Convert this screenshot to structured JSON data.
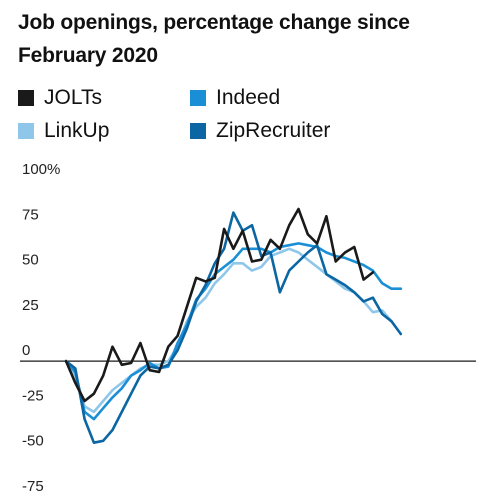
{
  "chart_data": {
    "type": "line",
    "title": "Job openings, percentage change since February 2020",
    "xlabel": "",
    "ylabel": "",
    "x": [
      0,
      1,
      2,
      3,
      4,
      5,
      6,
      7,
      8,
      9,
      10,
      11,
      12,
      13,
      14,
      15,
      16,
      17,
      18,
      19,
      20,
      21,
      22,
      23,
      24,
      25,
      26,
      27,
      28,
      29,
      30,
      31,
      32,
      33,
      34,
      35,
      36,
      37,
      38,
      39,
      40,
      41,
      42,
      43,
      44,
      45
    ],
    "ylim": [
      -75,
      100
    ],
    "y_ticks": [
      100,
      75,
      50,
      25,
      0,
      -25,
      -50,
      -75
    ],
    "y_tick_labels": [
      "100%",
      "75",
      "50",
      "25",
      "0",
      "-25",
      "-50",
      "-75"
    ],
    "zero_line": true,
    "grid": false,
    "legend_position": "top",
    "series": [
      {
        "name": "JOLTs",
        "color": "#1a1a1a",
        "values": [
          0,
          -12,
          -22,
          -18,
          -8,
          8,
          -2,
          -1,
          10,
          -5,
          -6,
          8,
          14,
          30,
          46,
          44,
          46,
          73,
          62,
          72,
          55,
          56,
          67,
          62,
          75,
          84,
          70,
          65,
          80,
          55,
          60,
          63,
          45,
          49,
          null,
          null,
          null,
          null,
          null,
          null,
          null,
          null,
          null,
          null,
          null,
          null
        ]
      },
      {
        "name": "Indeed",
        "color": "#1a8fd6",
        "values": [
          0,
          -6,
          -28,
          -32,
          -26,
          -20,
          -15,
          -8,
          -5,
          -1,
          -4,
          -3,
          10,
          20,
          34,
          40,
          48,
          52,
          56,
          62,
          62,
          62,
          60,
          63,
          64,
          65,
          64,
          63,
          60,
          58,
          57,
          55,
          53,
          50,
          43,
          40,
          40,
          null,
          null,
          null,
          null,
          null,
          null,
          null,
          null,
          null
        ]
      },
      {
        "name": "LinkUp",
        "color": "#8fc7ea",
        "values": [
          0,
          -8,
          -25,
          -28,
          -22,
          -16,
          -12,
          -8,
          -4,
          -2,
          -2,
          0,
          8,
          22,
          30,
          35,
          43,
          48,
          54,
          54,
          50,
          52,
          58,
          60,
          62,
          60,
          56,
          52,
          48,
          44,
          40,
          38,
          33,
          27,
          28,
          22,
          null,
          null,
          null,
          null,
          null,
          null,
          null,
          null,
          null,
          null
        ]
      },
      {
        "name": "ZipRecruiter",
        "color": "#0b66a3",
        "values": [
          0,
          -4,
          -32,
          -45,
          -44,
          -38,
          -28,
          -18,
          -8,
          -3,
          -4,
          -2,
          6,
          18,
          33,
          42,
          54,
          62,
          82,
          72,
          75,
          58,
          60,
          38,
          50,
          55,
          60,
          64,
          48,
          45,
          42,
          38,
          33,
          35,
          26,
          22,
          15,
          null,
          null,
          null,
          null,
          null,
          null,
          null,
          null,
          null
        ]
      }
    ]
  }
}
